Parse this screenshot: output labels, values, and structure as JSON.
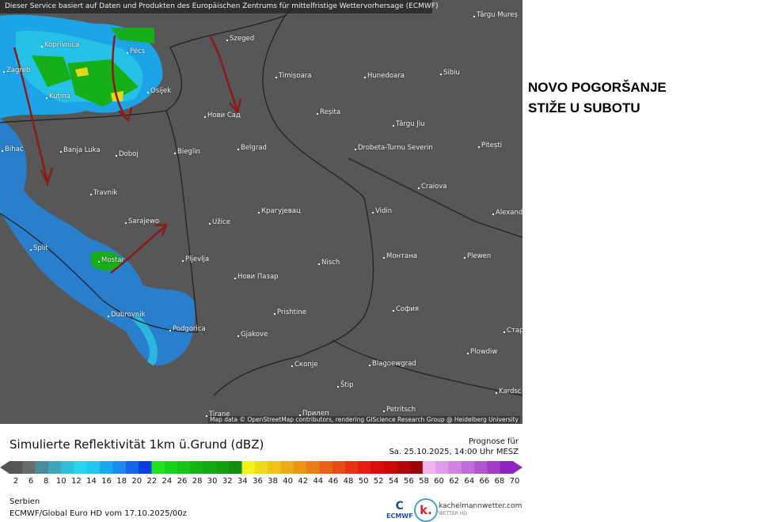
{
  "banner": "Dieser Service basiert auf Daten und Produkten des Europäischen Zentrums für mittelfristige Wettervorhersage (ECMWF)",
  "headline": [
    "NOVO POGORŠANJE",
    "STIŽE U SUBOTU"
  ],
  "cities": [
    [
      "Târgu Mureș",
      598,
      14
    ],
    [
      "Szeged",
      286,
      44
    ],
    [
      "Koprivnica",
      52,
      52
    ],
    [
      "Pécs",
      160,
      60
    ],
    [
      "Zagreb",
      4,
      84
    ],
    [
      "Timișoara",
      348,
      91
    ],
    [
      "Hunedoara",
      460,
      91
    ],
    [
      "Sibiu",
      556,
      87
    ],
    [
      "Kutina",
      58,
      117
    ],
    [
      "Osijek",
      186,
      110
    ],
    [
      "Нови Сад",
      258,
      141
    ],
    [
      "Reșita",
      400,
      137
    ],
    [
      "Târgu Jiu",
      496,
      152
    ],
    [
      "Banja Luka",
      76,
      185
    ],
    [
      "Doboj",
      146,
      190
    ],
    [
      "Bieglin",
      220,
      187
    ],
    [
      "Belgrad",
      300,
      182
    ],
    [
      "Drobeta-Turnu Severin",
      448,
      182
    ],
    [
      "Pitești",
      604,
      179
    ],
    [
      "Bihać",
      2,
      184
    ],
    [
      "Craiova",
      528,
      231
    ],
    [
      "Travnik",
      114,
      239
    ],
    [
      "Крагујевац",
      326,
      262
    ],
    [
      "Vidin",
      470,
      262
    ],
    [
      "Alexand",
      622,
      264
    ],
    [
      "Sarajewo",
      158,
      275
    ],
    [
      "Užice",
      264,
      276
    ],
    [
      "Split",
      38,
      309
    ],
    [
      "Pljevlja",
      230,
      323
    ],
    [
      "Монтана",
      484,
      319
    ],
    [
      "Plewen",
      586,
      319
    ],
    [
      "Nisch",
      402,
      327
    ],
    [
      "Mostar",
      124,
      324
    ],
    [
      "Нови Пазар",
      296,
      345
    ],
    [
      "Prishtine",
      346,
      390
    ],
    [
      "София",
      496,
      386
    ],
    [
      "Dubrovnik",
      136,
      393
    ],
    [
      "Podgorica",
      214,
      411
    ],
    [
      "Gjakove",
      300,
      418
    ],
    [
      "Стара",
      636,
      413
    ],
    [
      "Plowdiw",
      590,
      440
    ],
    [
      "Скопје",
      368,
      456
    ],
    [
      "Blagoewgrad",
      466,
      455
    ],
    [
      "Štip",
      426,
      482
    ],
    [
      "Kardsc",
      626,
      490
    ],
    [
      "Petritsch",
      484,
      513
    ],
    [
      "Tirane",
      260,
      519
    ],
    [
      "Прилеп",
      378,
      518
    ]
  ],
  "attribution": "Map data © OpenStreetMap contributors, rendering GIScience Research Group @ Heidelberg University",
  "legend": {
    "title": "Simulierte Reflektivität 1km ü.Grund (dBZ)",
    "forecast_label": "Prognose für",
    "forecast_time": "Sa. 25.10.2025, 14:00 Uhr MESZ",
    "ticks": [
      "2",
      "6",
      "8",
      "10",
      "12",
      "14",
      "16",
      "18",
      "20",
      "22",
      "24",
      "26",
      "28",
      "30",
      "32",
      "34",
      "36",
      "38",
      "40",
      "42",
      "44",
      "46",
      "48",
      "50",
      "52",
      "54",
      "56",
      "58",
      "60",
      "62",
      "64",
      "66",
      "68",
      "70"
    ],
    "colors": [
      "#555555",
      "#6a6a6a",
      "#4a8a9a",
      "#3aa6b8",
      "#2fc0d8",
      "#2ad4ee",
      "#22c6f0",
      "#1aa8f0",
      "#1a8cf0",
      "#1466e6",
      "#0a3ee0",
      "#1ee41e",
      "#1ad41a",
      "#16c416",
      "#14b414",
      "#12aa12",
      "#10a010",
      "#0e900e",
      "#f4f414",
      "#f0dc14",
      "#f0c414",
      "#ecac14",
      "#ec9414",
      "#ec7c14",
      "#e86414",
      "#e84c14",
      "#e43414",
      "#e41c14",
      "#dc0c0c",
      "#cc0808",
      "#b00808",
      "#9c0404",
      "#f0b4f0",
      "#e09ce8",
      "#d084e0",
      "#c06cd8",
      "#b054d0",
      "#a03cc8",
      "#9024c0"
    ]
  },
  "footer": {
    "region": "Serbien",
    "model": "ECMWF/Global Euro HD vom  17.10.2025/00z",
    "ecmwf": "ECMWF",
    "brand": "kachelmannwetter.com",
    "brand_sub": "WETTER HD",
    "brand_letter": "k."
  }
}
